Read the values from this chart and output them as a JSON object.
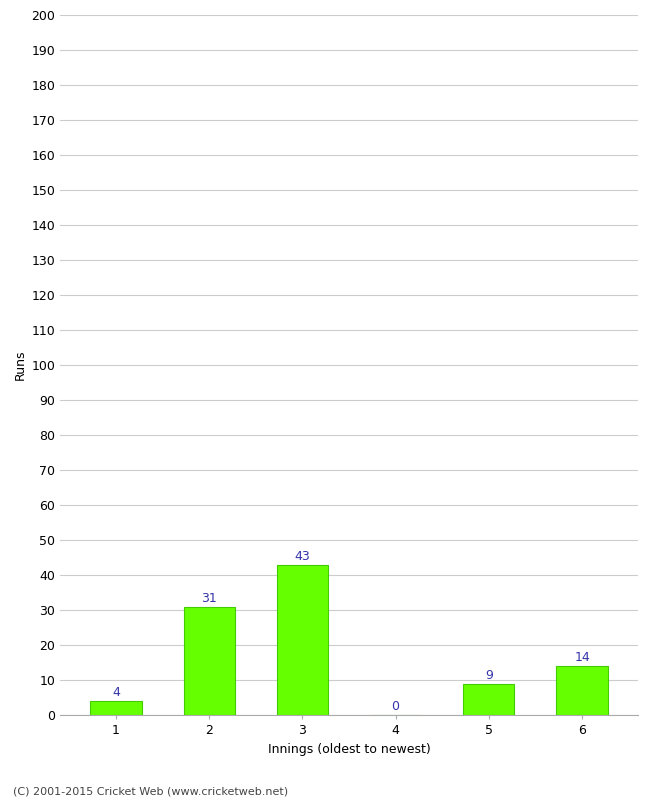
{
  "categories": [
    "1",
    "2",
    "3",
    "4",
    "5",
    "6"
  ],
  "values": [
    4,
    31,
    43,
    0,
    9,
    14
  ],
  "bar_color": "#66ff00",
  "bar_edge_color": "#44cc00",
  "label_color": "#3333aa",
  "xlabel": "Innings (oldest to newest)",
  "ylabel": "Runs",
  "ylim": [
    0,
    200
  ],
  "yticks": [
    0,
    10,
    20,
    30,
    40,
    50,
    60,
    70,
    80,
    90,
    100,
    110,
    120,
    130,
    140,
    150,
    160,
    170,
    180,
    190,
    200
  ],
  "footer": "(C) 2001-2015 Cricket Web (www.cricketweb.net)",
  "background_color": "#ffffff",
  "grid_color": "#cccccc",
  "tick_label_fontsize": 9,
  "axis_label_fontsize": 9,
  "value_label_fontsize": 9,
  "footer_fontsize": 8,
  "bar_width": 0.55
}
